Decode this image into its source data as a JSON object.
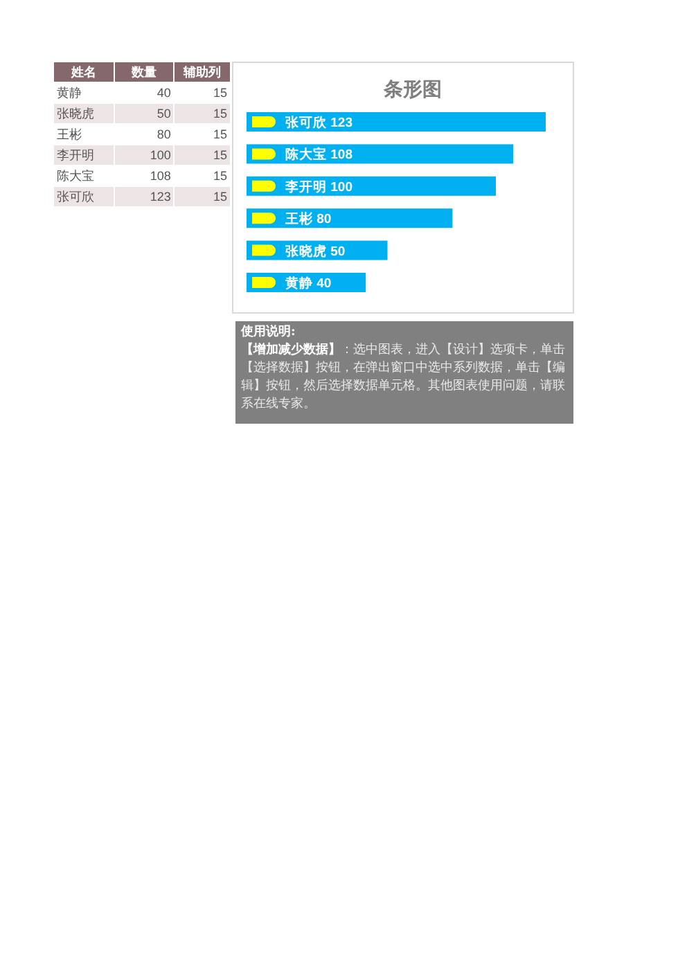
{
  "chart_data": [
    {
      "type": "other",
      "categories": [
        "姓名",
        "数量",
        "辅助列"
      ],
      "annotations": [
        "黄静",
        "40",
        "15",
        "张晓虎",
        "50",
        "15",
        "王彬",
        "80",
        "15",
        "李开明",
        "100",
        "15",
        "陈大宝",
        "108",
        "15",
        "张可欣",
        "123",
        "15"
      ]
    },
    {
      "type": "bar",
      "orientation": "horizontal",
      "stacked": true,
      "title": "条形图",
      "categories": [
        null,
        null,
        null,
        null,
        null,
        null
      ],
      "series": [
        {
          "color": "#00b0f0",
          "values": [
            15,
            15,
            15,
            15,
            15,
            15
          ]
        },
        {
          "color": "#00b0f0",
          "values": [
            123,
            108,
            100,
            80,
            50,
            40
          ],
          "value_labels": [
            "张可欣 123",
            "陈大宝 108",
            "李开明 100",
            "王彬 80",
            "张晓虎 50",
            "黄静 40"
          ]
        }
      ],
      "annotations": [
        "使用说明:",
        "【增加减少数据】",
        "：选中图表，进入【设计】选项卡，单击【选择数据】按钮，在弹出窗口中选中系列数据，单击【编辑】按钮，然后选择数据单元格。其他图表使用问题，请联系在线专家。"
      ]
    }
  ]
}
